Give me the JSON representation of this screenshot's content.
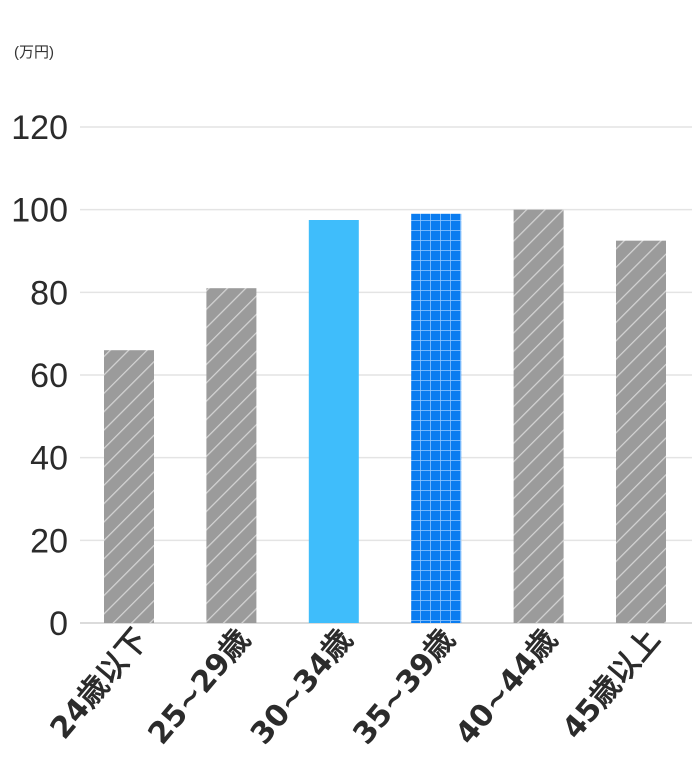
{
  "chart_data": {
    "type": "bar",
    "unit_label": "(万円)",
    "categories": [
      "24歳以下",
      "25~29歳",
      "30~34歳",
      "35~39歳",
      "40~44歳",
      "45歳以上"
    ],
    "values": [
      66,
      81,
      97.5,
      99,
      100,
      92.5
    ],
    "styles": [
      "hatch-gray",
      "hatch-gray",
      "solid-lightblue",
      "grid-blue",
      "hatch-gray",
      "hatch-gray"
    ],
    "yticks": [
      0,
      20,
      40,
      60,
      80,
      100,
      120
    ],
    "ylim": [
      0,
      120
    ],
    "grid": true,
    "colors": {
      "gray": "#9b9b9b",
      "gray_hatch": "#d4d4d4",
      "lightblue": "#3fbdfb",
      "blue": "#0a7cf0",
      "blue_grid": "#8fc6ff"
    }
  }
}
